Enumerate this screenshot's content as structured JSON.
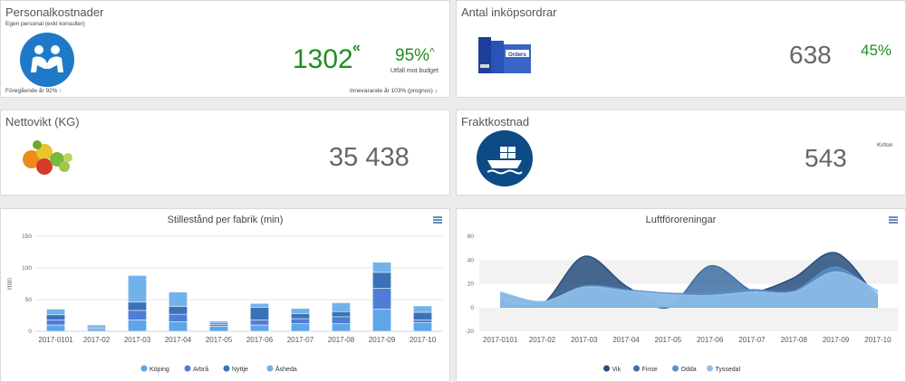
{
  "personal": {
    "title": "Personalkostnader",
    "subtitle": "Egen personal (exkl konsulter)",
    "value": "1302",
    "percent": "95%",
    "percent_label": "Utfall mot budget",
    "prev_year": "Föregående år 92%",
    "current_year": "Innevarande år 103% (prognos)",
    "icon": "handshake-icon"
  },
  "orders": {
    "title": "Antal inköpsordrar",
    "value": "638",
    "percent": "45%",
    "icon": "orders-binder-icon",
    "binder_text": "Orders"
  },
  "netweight": {
    "title": "Nettovikt (KG)",
    "value": "35 438",
    "icon": "fruit-icon"
  },
  "freight": {
    "title": "Fraktkostnad",
    "value": "543",
    "unit": "Kr/ton",
    "icon": "cargo-ship-icon"
  },
  "colors": {
    "green": "#1f8f1f",
    "blue_icon": "#1e7ac9",
    "ship_bg": "#0d4a86"
  },
  "chart_data": [
    {
      "type": "bar",
      "stacked": true,
      "title": "Stillestånd per fabrik (min)",
      "ylabel": "min",
      "ylim": [
        0,
        150
      ],
      "yticks": [
        0,
        50,
        100,
        150
      ],
      "categories": [
        "2017-0101",
        "2017-02",
        "2017-03",
        "2017-04",
        "2017-05",
        "2017-06",
        "2017-07",
        "2017-08",
        "2017-09",
        "2017-10"
      ],
      "series": [
        {
          "name": "Köping",
          "color": "#5fa6e8",
          "values": [
            10,
            3,
            18,
            15,
            8,
            10,
            12,
            12,
            35,
            14
          ]
        },
        {
          "name": "Arbrå",
          "color": "#4f7dd6",
          "values": [
            8,
            2,
            15,
            12,
            3,
            8,
            8,
            11,
            33,
            4
          ]
        },
        {
          "name": "Nyttje",
          "color": "#3a72b8",
          "values": [
            8,
            2,
            13,
            12,
            2,
            20,
            8,
            8,
            25,
            12
          ]
        },
        {
          "name": "Åsheda",
          "color": "#72b2ea",
          "values": [
            9,
            3,
            42,
            23,
            3,
            6,
            8,
            14,
            16,
            10
          ]
        }
      ],
      "legend": "bottom"
    },
    {
      "type": "area",
      "title": "Luftföroreningar",
      "ylim": [
        -20,
        60
      ],
      "yticks": [
        -20,
        0,
        20,
        40,
        60
      ],
      "categories": [
        "2017-0101",
        "2017-02",
        "2017-03",
        "2017-04",
        "2017-05",
        "2017-06",
        "2017-07",
        "2017-08",
        "2017-09",
        "2017-10"
      ],
      "series": [
        {
          "name": "Vik",
          "color": "#274f7e",
          "values": [
            5,
            3,
            43,
            18,
            1,
            8,
            12,
            25,
            46,
            7
          ]
        },
        {
          "name": "Finse",
          "color": "#3e6ea2",
          "values": [
            2,
            3,
            17,
            14,
            0,
            35,
            14,
            8,
            20,
            5
          ]
        },
        {
          "name": "Odda",
          "color": "#5a8fc6",
          "values": [
            12,
            4,
            18,
            15,
            12,
            12,
            15,
            14,
            34,
            10
          ]
        },
        {
          "name": "Tyssedal",
          "color": "#8fbfea",
          "values": [
            13,
            5,
            17,
            14,
            11,
            10,
            13,
            13,
            30,
            14
          ]
        }
      ],
      "legend": "bottom"
    }
  ]
}
